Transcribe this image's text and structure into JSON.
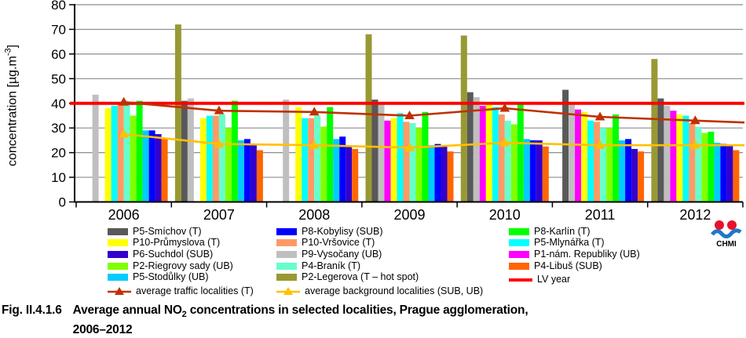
{
  "y_axis": {
    "title_prefix": "concentration [µg.m",
    "title_sup": "-3",
    "title_suffix": "]"
  },
  "chart_data": {
    "type": "bar",
    "categories": [
      "2006",
      "2007",
      "2008",
      "2009",
      "2010",
      "2011",
      "2012"
    ],
    "ylabel": "concentration [µg.m-3]",
    "ylim": [
      0,
      80
    ],
    "ytick_step": 10,
    "grid": true,
    "series": [
      {
        "name": "P2-Legerova (T – hot spot)",
        "color": "#999933",
        "values": [
          null,
          72,
          null,
          68,
          67.5,
          null,
          58
        ]
      },
      {
        "name": "P5-Smíchov (T)",
        "color": "#595959",
        "values": [
          null,
          41,
          null,
          41.5,
          44.5,
          45.5,
          42
        ]
      },
      {
        "name": "P9-Vysočany (UB)",
        "color": "#BFBFBF",
        "values": [
          43.5,
          42,
          41.5,
          39.5,
          42.5,
          40.5,
          39
        ]
      },
      {
        "name": "P1-nám. Republiky (UB)",
        "color": "#FF00FF",
        "values": [
          null,
          null,
          null,
          33,
          39,
          37.5,
          37
        ]
      },
      {
        "name": "P10-Průmyslova (T)",
        "color": "#FFFF00",
        "values": [
          38,
          34,
          38.5,
          34,
          39.5,
          36.5,
          35.5
        ]
      },
      {
        "name": "P5-Mlynářka (T)",
        "color": "#00FFFF",
        "values": [
          39,
          35,
          34,
          36,
          38.5,
          33,
          35
        ]
      },
      {
        "name": "P10-Vršovice (T)",
        "color": "#FF9966",
        "values": [
          40,
          35,
          34,
          32.5,
          35.5,
          32.5,
          32
        ]
      },
      {
        "name": "P4-Braník (T)",
        "color": "#66FFCC",
        "values": [
          40,
          35.5,
          35,
          32,
          33,
          30,
          30.5
        ]
      },
      {
        "name": "P2-Riegrovy sady (UB)",
        "color": "#80FF00",
        "values": [
          35,
          30,
          30.5,
          30,
          31.5,
          30,
          28
        ]
      },
      {
        "name": "P8-Karlín (T)",
        "color": "#00FF00",
        "values": [
          41,
          41,
          38.5,
          36.5,
          39.5,
          35.5,
          28.5
        ]
      },
      {
        "name": "P5-Stodůlky (UB)",
        "color": "#00CCFF",
        "values": [
          29,
          25,
          25.5,
          23,
          25.5,
          25,
          24
        ]
      },
      {
        "name": "P8-Kobylisy (SUB)",
        "color": "#0000FF",
        "values": [
          29,
          25.5,
          26.5,
          23.5,
          25,
          25.5,
          23.5
        ]
      },
      {
        "name": "P6-Suchdol (SUB)",
        "color": "#3300CC",
        "values": [
          27.5,
          23,
          23,
          22.5,
          25,
          21.5,
          23
        ]
      },
      {
        "name": "P4-Libuš (SUB)",
        "color": "#FF6600",
        "values": [
          25.5,
          21,
          21.5,
          20.5,
          22.5,
          20.5,
          21
        ]
      }
    ],
    "lines": [
      {
        "name": "average traffic localities (T)",
        "color": "#C03000",
        "marker": "triangle",
        "values": [
          40.5,
          37,
          36.5,
          35,
          38,
          34.5,
          33
        ]
      },
      {
        "name": "average background localities (SUB, UB)",
        "color": "#FFC000",
        "marker": "triangle",
        "values": [
          27.5,
          23.5,
          23,
          22,
          24,
          23,
          23
        ]
      }
    ],
    "reference_line": {
      "label": "LV year",
      "color": "#FF0000",
      "value": 40
    }
  },
  "legend": {
    "columns": [
      [
        {
          "label": "P5-Smíchov (T)",
          "color": "#595959",
          "kind": "bar"
        },
        {
          "label": "P10-Průmyslova (T)",
          "color": "#FFFF00",
          "kind": "bar"
        },
        {
          "label": "P6-Suchdol (SUB)",
          "color": "#3300CC",
          "kind": "bar"
        },
        {
          "label": "P2-Riegrovy sady (UB)",
          "color": "#80FF00",
          "kind": "bar"
        },
        {
          "label": "P5-Stodůlky (UB)",
          "color": "#00CCFF",
          "kind": "bar"
        },
        {
          "label": "average traffic localities  (T)",
          "color": "#C03000",
          "kind": "line-triangle"
        }
      ],
      [
        {
          "label": "P8-Kobylisy (SUB)",
          "color": "#0000FF",
          "kind": "bar"
        },
        {
          "label": "P10-Vršovice (T)",
          "color": "#FF9966",
          "kind": "bar"
        },
        {
          "label": "P9-Vysočany (UB)",
          "color": "#BFBFBF",
          "kind": "bar"
        },
        {
          "label": "P4-Braník (T)",
          "color": "#66FFCC",
          "kind": "bar"
        },
        {
          "label": "P2-Legerova (T – hot spot)",
          "color": "#999933",
          "kind": "bar"
        },
        {
          "label": "average background localities  (SUB, UB)",
          "color": "#FFC000",
          "kind": "line-triangle"
        }
      ],
      [
        {
          "label": "P8-Karlín (T)",
          "color": "#00FF00",
          "kind": "bar"
        },
        {
          "label": "P5-Mlynářka (T)",
          "color": "#00FFFF",
          "kind": "bar"
        },
        {
          "label": "P1-nám. Republiky (UB)",
          "color": "#FF00FF",
          "kind": "bar"
        },
        {
          "label": "P4-Libuš (SUB)",
          "color": "#FF6600",
          "kind": "bar"
        },
        {
          "label": "LV year",
          "color": "#FF0000",
          "kind": "line"
        }
      ]
    ]
  },
  "caption": {
    "fig": "Fig. II.4.1.6",
    "pre_sub": "Average annual NO",
    "sub": "2",
    "post_sub": " concentrations in selected localities, Prague agglomeration,",
    "line2": "2006–2012"
  },
  "logo": {
    "label": "CHMI",
    "dot_color": "#E8112D",
    "wave_color": "#1E78C8"
  }
}
